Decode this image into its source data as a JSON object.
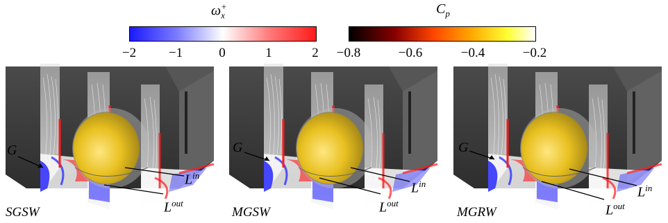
{
  "colorbars": {
    "vorticity": {
      "title_symbol": "ω",
      "title_sub": "x",
      "title_sup": "+",
      "ticks": [
        "−2",
        "−1",
        "0",
        "1",
        "2"
      ],
      "colors": [
        "#1a1aff",
        "#ffffff",
        "#ff1a1a"
      ]
    },
    "pressure": {
      "title_symbol": "C",
      "title_sub": "p",
      "ticks": [
        "−0.8",
        "−0.6",
        "−0.4",
        "−0.2"
      ],
      "colors": [
        "#000000",
        "#8b0000",
        "#ff4500",
        "#ffa500",
        "#ffff33",
        "#ffffff"
      ]
    }
  },
  "panels": [
    {
      "label": "SGSW",
      "callouts": {
        "g": "G",
        "lin_base": "L",
        "lin_sup": "in",
        "lout_base": "L",
        "lout_sup": "out"
      }
    },
    {
      "label": "MGSW",
      "callouts": {
        "g": "G",
        "lin_base": "L",
        "lin_sup": "in",
        "lout_base": "L",
        "lout_sup": "out"
      }
    },
    {
      "label": "MGRW",
      "callouts": {
        "g": "G",
        "lin_base": "L",
        "lin_sup": "in",
        "lout_base": "L",
        "lout_sup": "out"
      }
    }
  ],
  "colors": {
    "body_dark": "#3a3a3a",
    "body_side": "#555555",
    "wheel_yellow": "#e8c020",
    "vort_blue": "#1a1aff",
    "vort_red": "#ff1a1a"
  }
}
